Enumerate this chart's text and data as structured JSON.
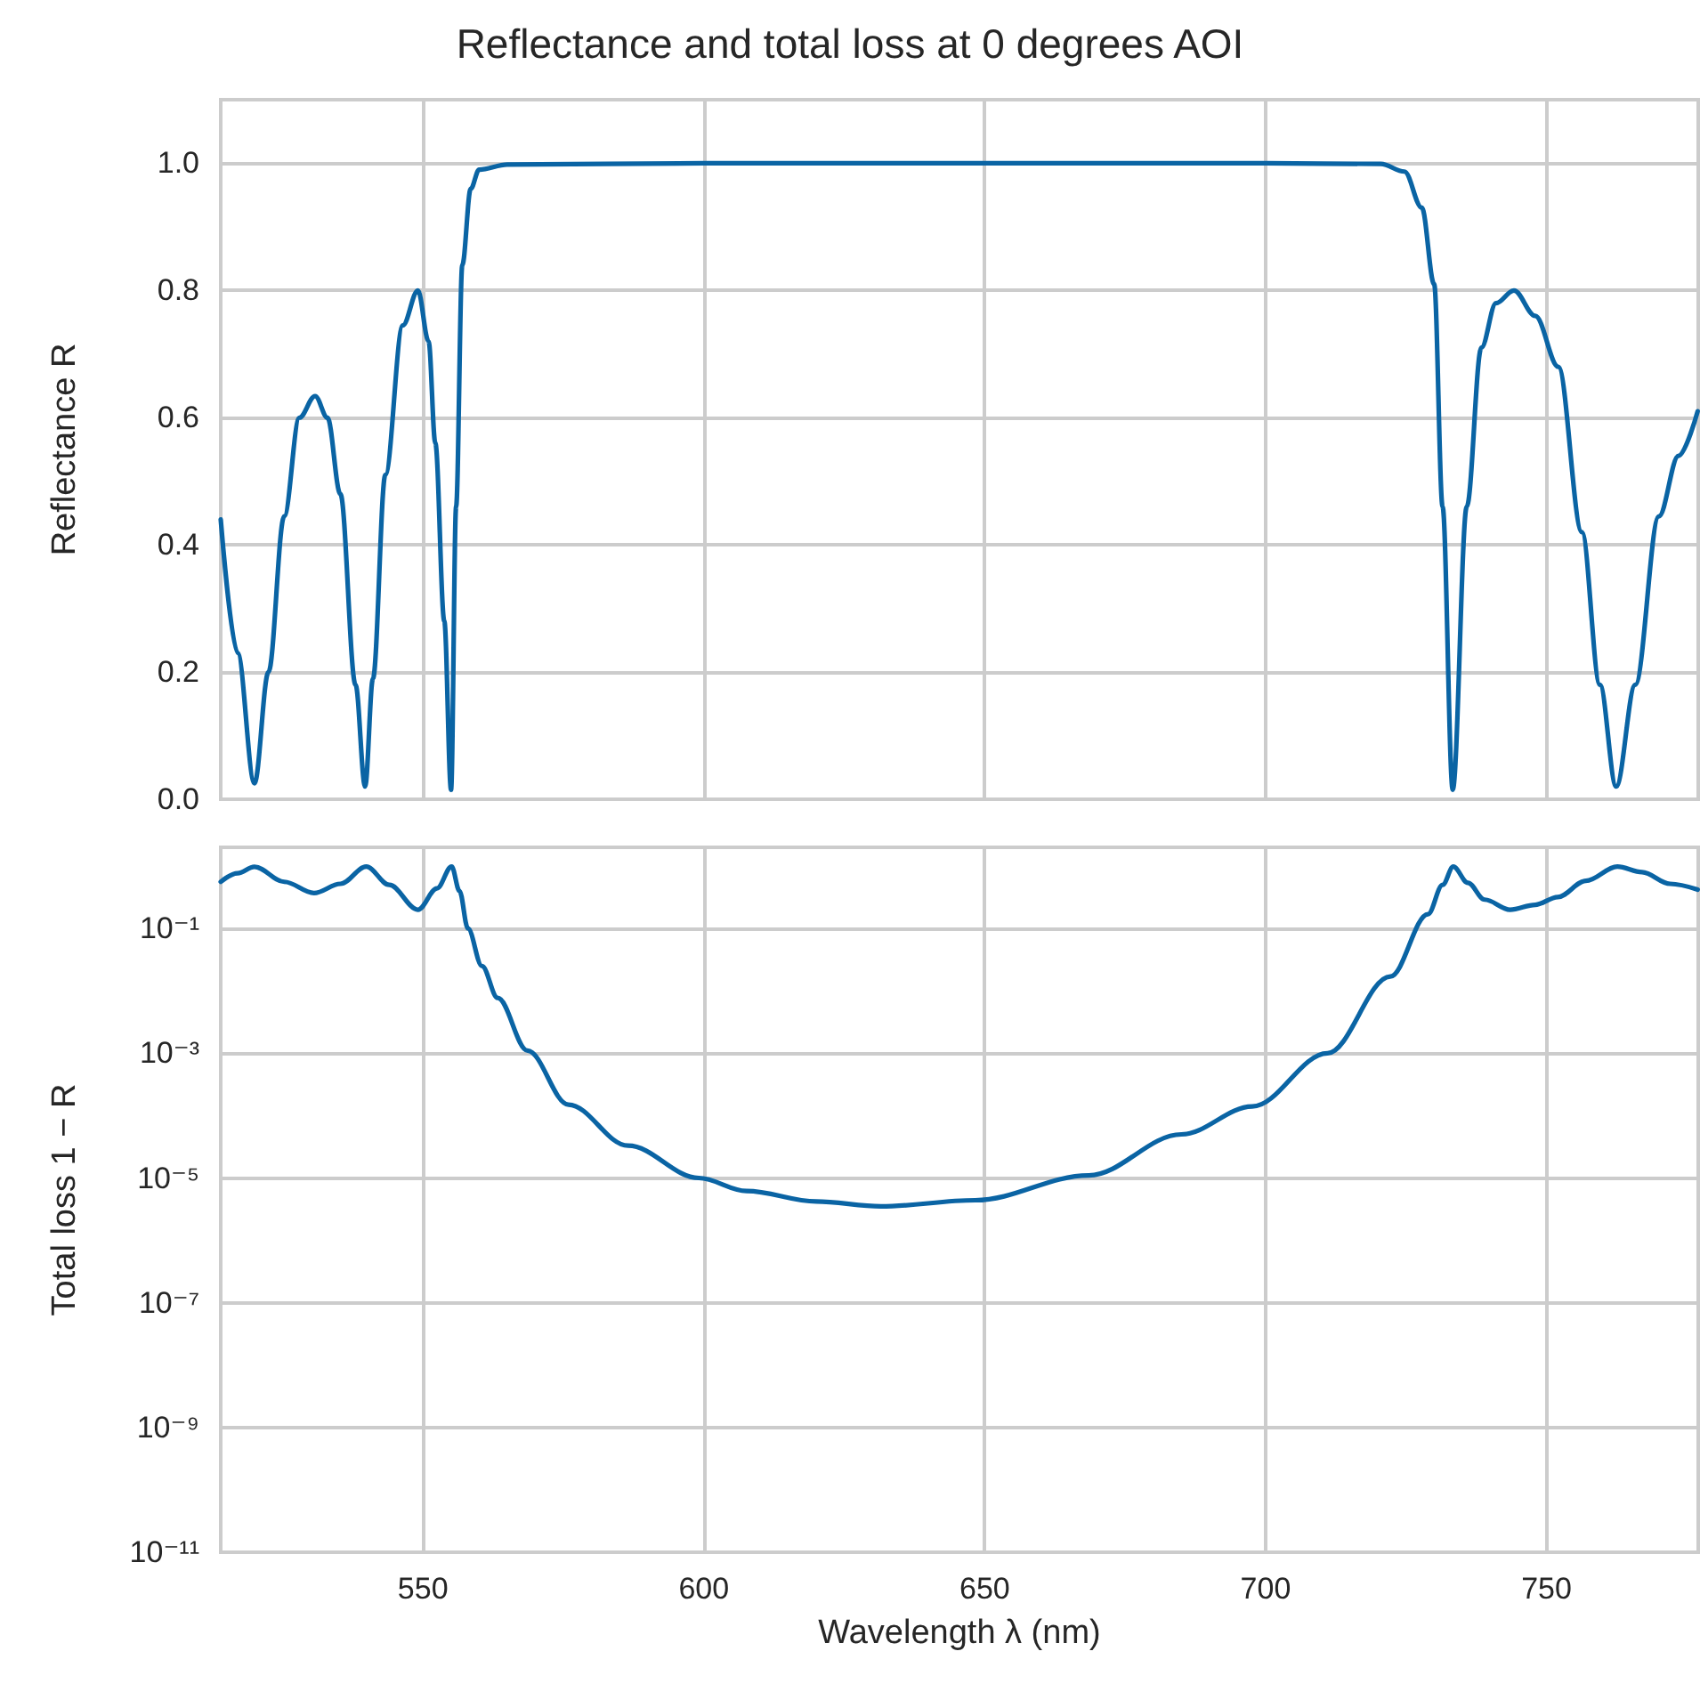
{
  "chart_data": [
    {
      "type": "line",
      "title": "Reflectance and total loss at 0 degrees AOI",
      "ylabel": "Reflectance R",
      "xlim": [
        514,
        777
      ],
      "xticks": [
        550,
        600,
        650,
        700,
        750
      ],
      "ylim": [
        0,
        1.1
      ],
      "yticks": [
        {
          "value": 0,
          "label": "0.0"
        },
        {
          "value": 0.2,
          "label": "0.2"
        },
        {
          "value": 0.4,
          "label": "0.4"
        },
        {
          "value": 0.6,
          "label": "0.6"
        },
        {
          "value": 0.8,
          "label": "0.8"
        },
        {
          "value": 1,
          "label": "1.0"
        }
      ],
      "grid": true,
      "tick_labels": "y",
      "series": [
        {
          "color": "#0a64a4",
          "x": [
            514,
            517,
            520,
            522.5,
            525.3,
            528,
            530.8,
            533,
            535.3,
            538,
            539.7,
            541.1,
            543.3,
            546.4,
            549.1,
            551,
            552.2,
            553.8,
            555,
            555.9,
            557,
            558.5,
            560,
            565,
            600,
            650,
            700,
            720.5,
            724.7,
            727.8,
            730,
            731.5,
            733.3,
            735.8,
            738.4,
            741,
            744.2,
            748,
            752.1,
            756.3,
            759.5,
            762.4,
            765.8,
            770,
            773.5,
            776.9
          ],
          "values": [
            0.44,
            0.23,
            0.025,
            0.2,
            0.445,
            0.6,
            0.634,
            0.6,
            0.48,
            0.18,
            0.02,
            0.19,
            0.51,
            0.745,
            0.8,
            0.72,
            0.56,
            0.28,
            0.015,
            0.46,
            0.84,
            0.96,
            0.99,
            0.998,
            1.0,
            1.0,
            1.0,
            0.999,
            0.987,
            0.93,
            0.81,
            0.46,
            0.015,
            0.46,
            0.71,
            0.78,
            0.8,
            0.76,
            0.68,
            0.42,
            0.18,
            0.02,
            0.18,
            0.445,
            0.54,
            0.61
          ]
        }
      ]
    },
    {
      "type": "line",
      "xlabel": "Wavelength λ (nm)",
      "ylabel": "Total loss 1 − R",
      "log": "y",
      "xlim": [
        514,
        777
      ],
      "xticks": [
        550,
        600,
        650,
        700,
        750
      ],
      "ylim": [
        1e-11,
        2
      ],
      "yticks": [
        {
          "value": 1e-11,
          "label": "10⁻¹¹"
        },
        {
          "value": 1e-09,
          "label": "10⁻⁹"
        },
        {
          "value": 1e-07,
          "label": "10⁻⁷"
        },
        {
          "value": 1e-05,
          "label": "10⁻⁵"
        },
        {
          "value": 0.001,
          "label": "10⁻³"
        },
        {
          "value": 0.1,
          "label": "10⁻¹"
        }
      ],
      "grid": true,
      "series": [
        {
          "color": "#0a64a4",
          "x": [
            514,
            517,
            520,
            525.3,
            530.6,
            535.3,
            539.9,
            544,
            549.1,
            552.5,
            555.1,
            556.5,
            558,
            560.5,
            563.3,
            568.6,
            575.9,
            586.5,
            599.1,
            607.6,
            620,
            631.5,
            648.3,
            668.5,
            685,
            697.6,
            711,
            722.2,
            728.9,
            731.5,
            733.4,
            736,
            739,
            743.5,
            748,
            752,
            757,
            762.6,
            767,
            772,
            776.9
          ],
          "values": [
            0.56,
            0.77,
            0.975,
            0.56,
            0.37,
            0.52,
            0.98,
            0.5,
            0.2,
            0.44,
            0.985,
            0.4,
            0.1,
            0.025,
            0.0077,
            0.0011,
            0.00015,
            3.3e-05,
            1e-05,
            6.2e-06,
            4.2e-06,
            3.5e-06,
            4.4e-06,
            1.1e-05,
            5e-05,
            0.00014,
            0.001,
            0.017,
            0.17,
            0.5,
            0.98,
            0.54,
            0.29,
            0.2,
            0.24,
            0.32,
            0.58,
            0.98,
            0.8,
            0.52,
            0.42
          ]
        }
      ]
    }
  ]
}
